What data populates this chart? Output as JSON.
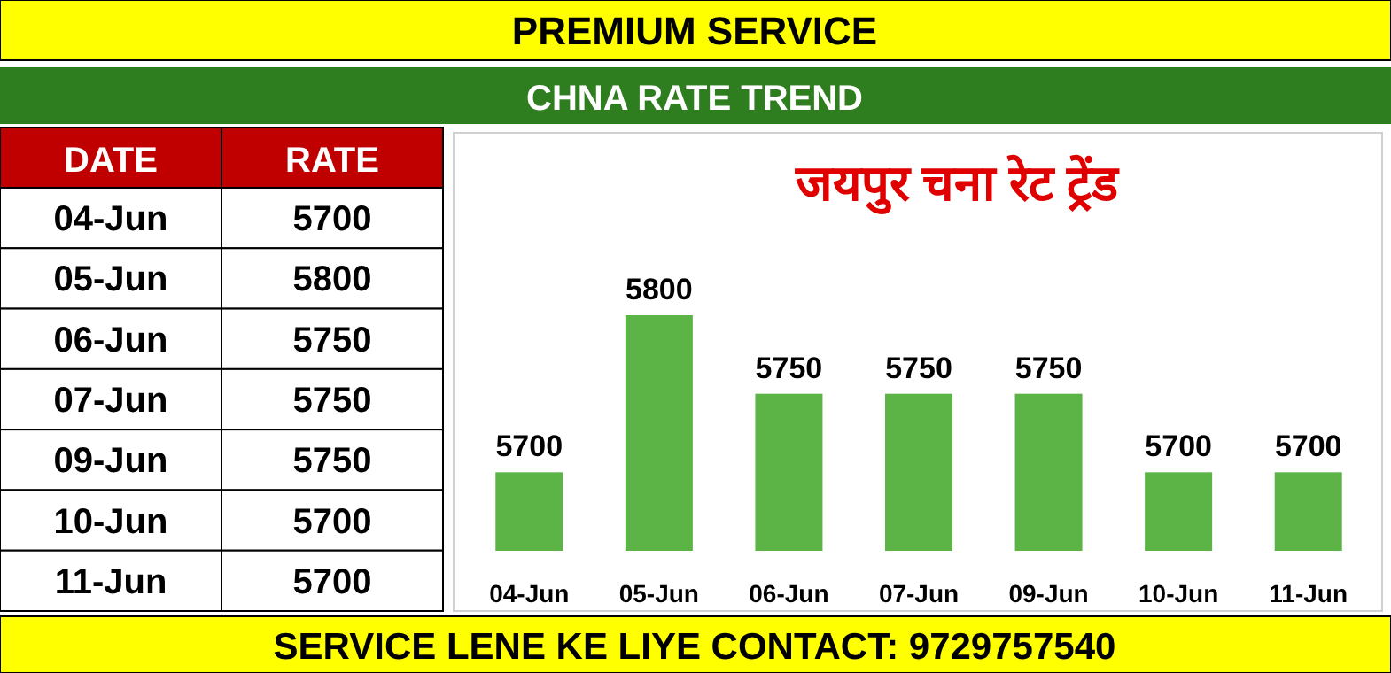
{
  "chart_data": [
    {
      "type": "other",
      "annotations": [
        "DATE",
        "RATE"
      ],
      "categories": [
        "04-Jun",
        "05-Jun",
        "06-Jun",
        "07-Jun",
        "09-Jun",
        "10-Jun",
        "11-Jun"
      ],
      "values": [
        5700,
        5800,
        5750,
        5750,
        5750,
        5700,
        5700
      ],
      "data_labels": true
    },
    {
      "type": "bar",
      "title": "जयपुर चना रेट ट्रेंड",
      "subtitle": "CHNA RATE TREND",
      "categories": [
        "04-Jun",
        "05-Jun",
        "06-Jun",
        "07-Jun",
        "09-Jun",
        "10-Jun",
        "11-Jun"
      ],
      "values": [
        5700,
        5800,
        5750,
        5750,
        5750,
        5700,
        5700
      ],
      "color": "#5cb346",
      "ylim": [
        5650,
        5800
      ],
      "tick_labels": "x",
      "data_labels": true,
      "annotations": [
        "PREMIUM SERVICE",
        "SERVICE LENE KE LIYE CONTACT: 9729757540"
      ]
    }
  ]
}
